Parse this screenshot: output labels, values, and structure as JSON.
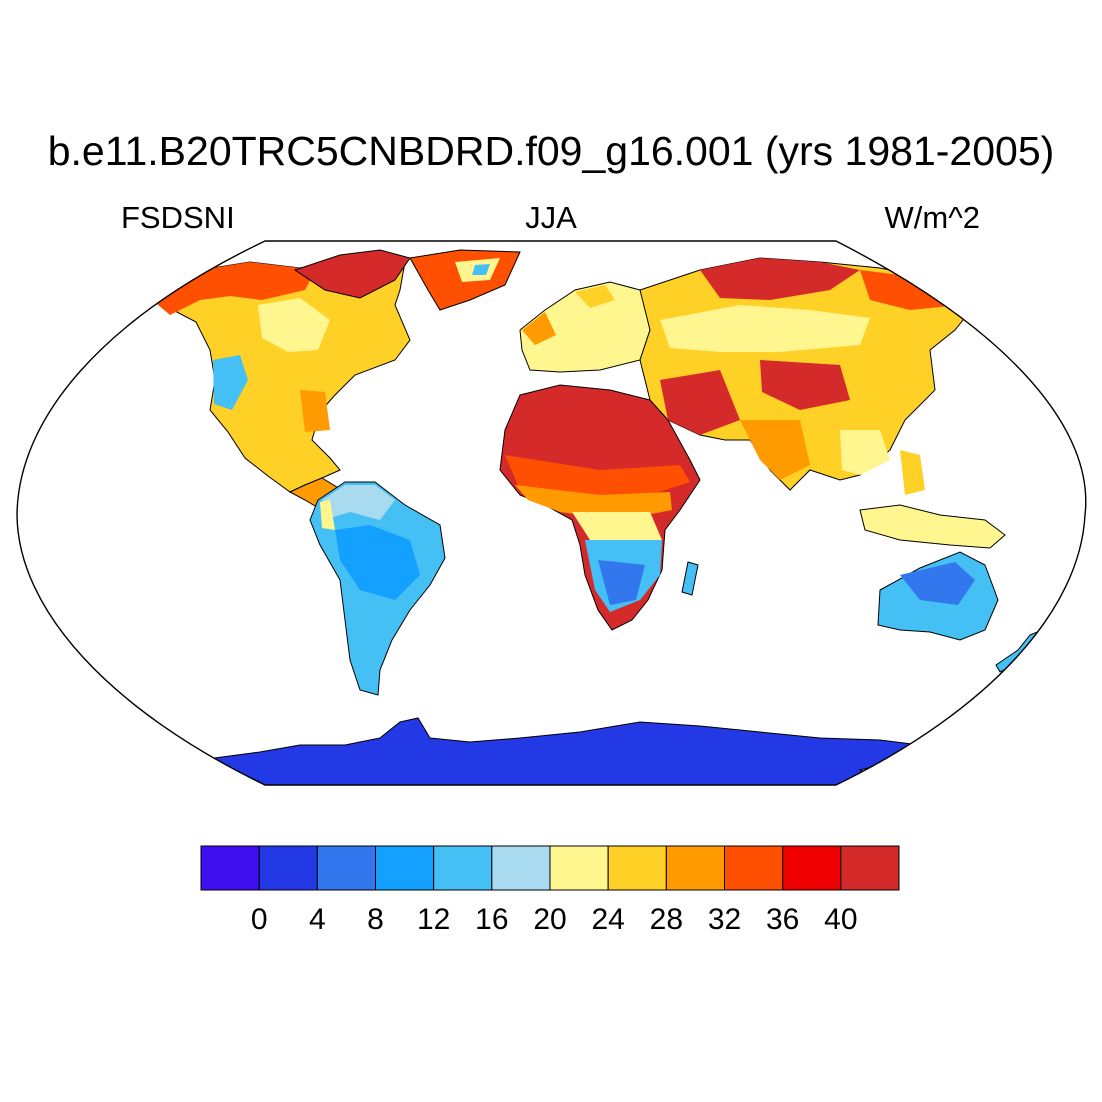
{
  "header": {
    "title": "b.e11.B20TRC5CNBDRD.f09_g16.001 (yrs 1981-2005)",
    "left_label": "FSDSNI",
    "center_label": "JJA",
    "right_label": "W/m^2"
  },
  "colorbar": {
    "colors": [
      "#3f0ff0",
      "#2339e6",
      "#3377ee",
      "#14a0ff",
      "#44c0f5",
      "#a8daf0",
      "#fff68f",
      "#ffd026",
      "#ff9a00",
      "#ff4f00",
      "#ee0000",
      "#d42a2a"
    ],
    "labels": [
      "0",
      "4",
      "8",
      "12",
      "16",
      "20",
      "24",
      "28",
      "32",
      "36",
      "40"
    ]
  },
  "map": {
    "projection": "Robinson",
    "ocean_color": "#ffffff",
    "coastline_color": "#000000"
  }
}
